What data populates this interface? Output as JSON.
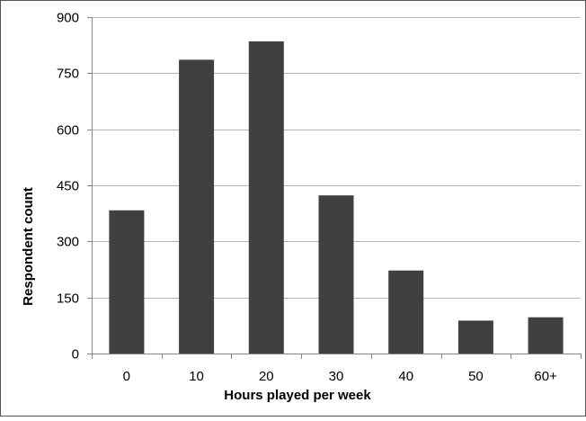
{
  "chart_data": {
    "type": "bar",
    "categories": [
      "0",
      "10",
      "20",
      "30",
      "40",
      "50",
      "60+"
    ],
    "values": [
      383,
      786,
      835,
      423,
      222,
      88,
      97
    ],
    "title": "",
    "xlabel": "Hours played per week",
    "ylabel": "Respondent count",
    "ylim": [
      0,
      900
    ],
    "yticks": [
      0,
      150,
      300,
      450,
      600,
      750,
      900
    ],
    "grid": true,
    "legend": "none",
    "colors": {
      "bar": "#404040",
      "grid": "#b3b3b3",
      "axis": "#868686",
      "frame": "#555555"
    }
  }
}
